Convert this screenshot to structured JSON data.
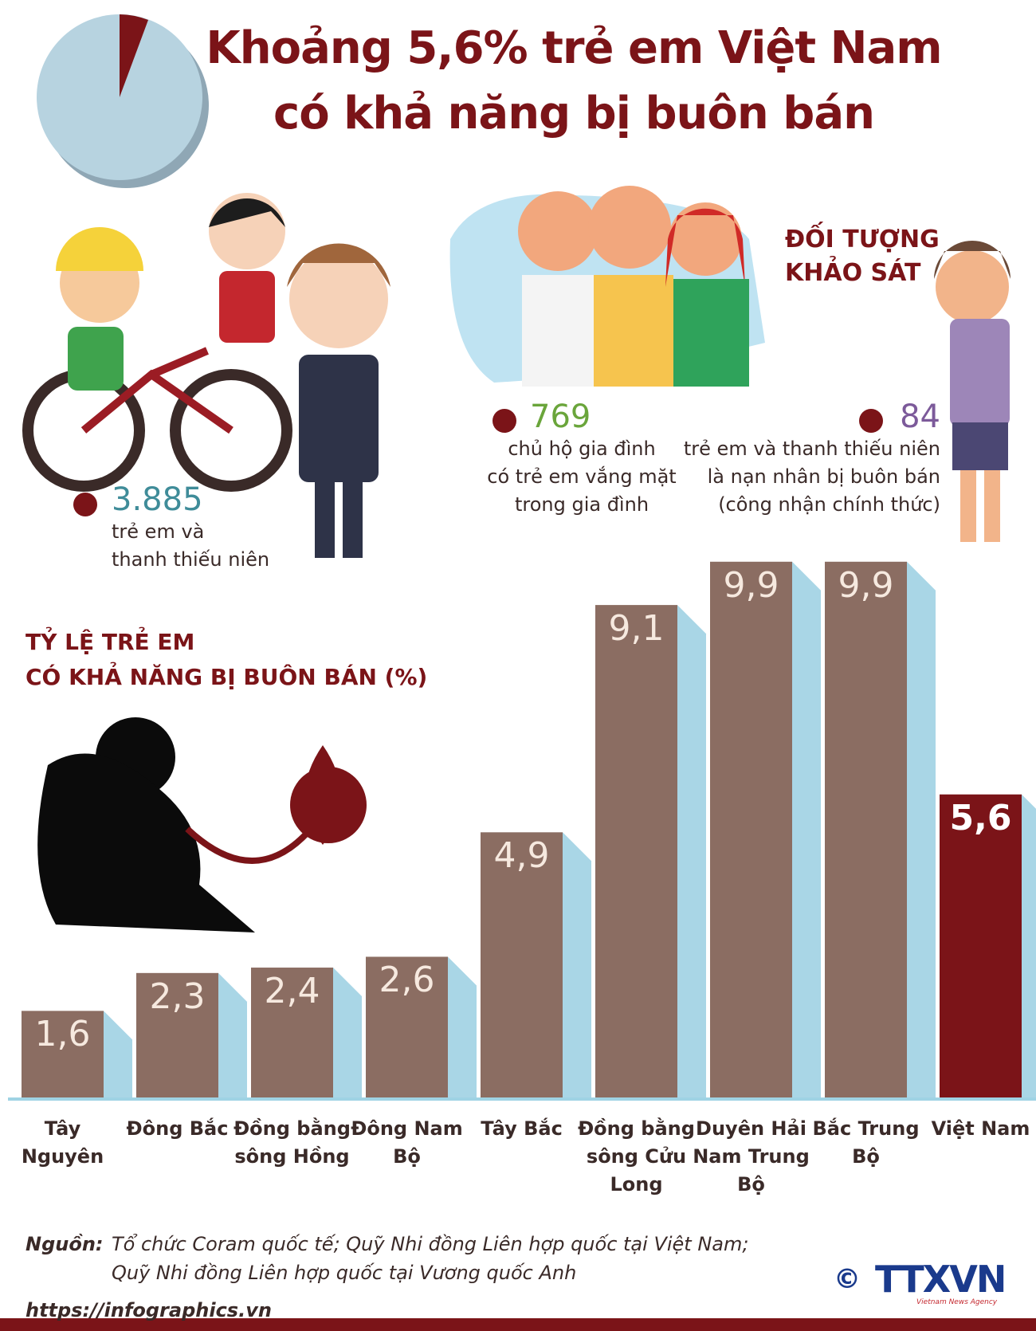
{
  "header": {
    "title": [
      "Khoảng 5,6% trẻ em Việt Nam",
      "có khả năng bị buôn bán"
    ]
  },
  "survey": {
    "heading": [
      "ĐỐI TƯỢNG",
      "KHẢO SÁT"
    ],
    "stats": [
      {
        "number": "3.885",
        "lines": [
          "trẻ em và",
          "thanh thiếu niên"
        ]
      },
      {
        "number": "769",
        "lines": [
          "chủ hộ gia đình",
          "có trẻ em vắng mặt",
          "trong gia đình"
        ]
      },
      {
        "number": "84",
        "lines": [
          "trẻ em và thanh thiếu niên",
          "là nạn nhân bị buôn bán",
          "(công nhận chính thức)"
        ]
      }
    ]
  },
  "chart_data": {
    "type": "bar",
    "title": [
      "TỶ LỆ TRẺ EM",
      "CÓ KHẢ NĂNG BỊ BUÔN BÁN (%)"
    ],
    "categories": [
      "Tây Nguyên",
      "Đông Bắc",
      "Đồng bằng sông Hồng",
      "Đông Nam Bộ",
      "Tây Bắc",
      "Đồng bằng sông Cửu Long",
      "Duyên Hải Nam Trung Bộ",
      "Bắc Trung Bộ",
      "Việt Nam"
    ],
    "values": [
      1.6,
      2.3,
      2.4,
      2.6,
      4.9,
      9.1,
      9.9,
      9.9,
      5.6
    ],
    "value_labels": [
      "1,6",
      "2,3",
      "2,4",
      "2,6",
      "4,9",
      "9,1",
      "9,9",
      "9,9",
      "5,6"
    ],
    "colors": [
      "#8b6d62",
      "#8b6d62",
      "#8b6d62",
      "#8b6d62",
      "#8b6d62",
      "#8b6d62",
      "#8b6d62",
      "#8b6d62",
      "#7b1418"
    ]
  },
  "source": {
    "label": "Nguồn:",
    "lines": [
      "Tổ chức Coram quốc tế; Quỹ Nhi đồng Liên hợp quốc tại Việt Nam;",
      "Quỹ Nhi đồng Liên hợp quốc tại Vương quốc Anh"
    ]
  },
  "footer": {
    "url": "https://infographics.vn",
    "copyright": "©",
    "logo": "TTXVN",
    "agency": "Vietnam News Agency"
  }
}
